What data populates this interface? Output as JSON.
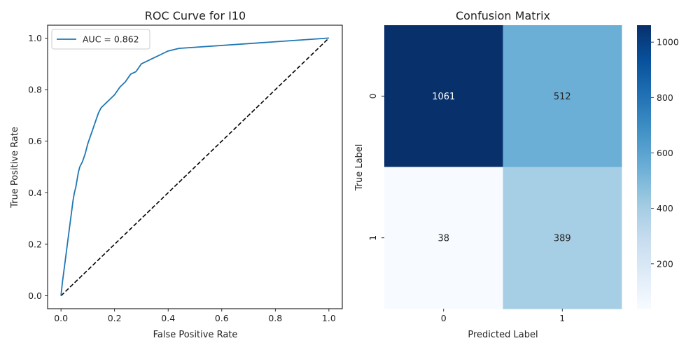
{
  "chart_data": [
    {
      "type": "line",
      "title": "ROC Curve for I10",
      "xlabel": "False Positive Rate",
      "ylabel": "True Positive Rate",
      "xlim": [
        -0.05,
        1.05
      ],
      "ylim": [
        -0.05,
        1.05
      ],
      "xticks": [
        "0.0",
        "0.2",
        "0.4",
        "0.6",
        "0.8",
        "1.0"
      ],
      "yticks": [
        "0.0",
        "0.2",
        "0.4",
        "0.6",
        "0.8",
        "1.0"
      ],
      "grid": false,
      "legend_position": "upper-left",
      "series": [
        {
          "name": "AUC = 0.862",
          "color": "#1f77b4",
          "style": "solid",
          "x": [
            0.0,
            0.005,
            0.01,
            0.015,
            0.02,
            0.025,
            0.03,
            0.035,
            0.04,
            0.045,
            0.05,
            0.055,
            0.06,
            0.065,
            0.07,
            0.08,
            0.09,
            0.1,
            0.11,
            0.12,
            0.13,
            0.14,
            0.15,
            0.16,
            0.17,
            0.18,
            0.19,
            0.2,
            0.22,
            0.24,
            0.26,
            0.28,
            0.3,
            0.32,
            0.34,
            0.36,
            0.38,
            0.4,
            0.42,
            0.44,
            1.0
          ],
          "y": [
            0.0,
            0.05,
            0.09,
            0.13,
            0.17,
            0.21,
            0.25,
            0.29,
            0.33,
            0.37,
            0.4,
            0.42,
            0.45,
            0.48,
            0.5,
            0.52,
            0.55,
            0.59,
            0.62,
            0.65,
            0.68,
            0.71,
            0.73,
            0.74,
            0.75,
            0.76,
            0.77,
            0.78,
            0.81,
            0.83,
            0.86,
            0.87,
            0.9,
            0.91,
            0.92,
            0.93,
            0.94,
            0.95,
            0.955,
            0.96,
            1.0
          ]
        },
        {
          "name": "",
          "color": "#000000",
          "style": "dashed",
          "x": [
            0.0,
            1.0
          ],
          "y": [
            0.0,
            1.0
          ]
        }
      ]
    },
    {
      "type": "heatmap",
      "title": "Confusion Matrix",
      "xlabel": "Predicted Label",
      "ylabel": "True Label",
      "x_categories": [
        "0",
        "1"
      ],
      "y_categories": [
        "0",
        "1"
      ],
      "values": [
        [
          1061,
          512
        ],
        [
          38,
          389
        ]
      ],
      "colormap": "Blues",
      "colorbar": {
        "min": 38,
        "max": 1061,
        "ticks": [
          200,
          400,
          600,
          800,
          1000
        ]
      },
      "cell_colors": [
        [
          "#08306b",
          "#6baed6"
        ],
        [
          "#f7fbff",
          "#a6cee4"
        ]
      ],
      "text_colors": [
        [
          "#ffffff",
          "#262626"
        ],
        [
          "#262626",
          "#262626"
        ]
      ]
    }
  ]
}
